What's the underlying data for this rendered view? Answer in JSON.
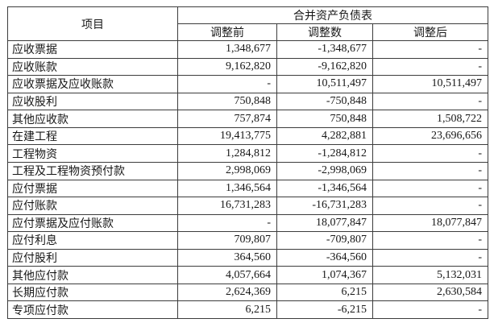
{
  "table": {
    "columns": {
      "item": "项目",
      "group": "合并资产负债表",
      "sub": [
        "调整前",
        "调整数",
        "调整后"
      ]
    },
    "rows": [
      {
        "label": "应收票据",
        "before": "1,348,677",
        "adjust": "-1,348,677",
        "after": "-"
      },
      {
        "label": "应收账款",
        "before": "9,162,820",
        "adjust": "-9,162,820",
        "after": "-"
      },
      {
        "label": "应收票据及应收账款",
        "before": "-",
        "adjust": "10,511,497",
        "after": "10,511,497"
      },
      {
        "label": "应收股利",
        "before": "750,848",
        "adjust": "-750,848",
        "after": "-"
      },
      {
        "label": "其他应收款",
        "before": "757,874",
        "adjust": "750,848",
        "after": "1,508,722"
      },
      {
        "label": "在建工程",
        "before": "19,413,775",
        "adjust": "4,282,881",
        "after": "23,696,656"
      },
      {
        "label": "工程物资",
        "before": "1,284,812",
        "adjust": "-1,284,812",
        "after": "-"
      },
      {
        "label": "工程及工程物资预付款",
        "before": "2,998,069",
        "adjust": "-2,998,069",
        "after": "-"
      },
      {
        "label": "应付票据",
        "before": "1,346,564",
        "adjust": "-1,346,564",
        "after": "-"
      },
      {
        "label": "应付账款",
        "before": "16,731,283",
        "adjust": "-16,731,283",
        "after": "-"
      },
      {
        "label": "应付票据及应付账款",
        "before": "-",
        "adjust": "18,077,847",
        "after": "18,077,847"
      },
      {
        "label": "应付利息",
        "before": "709,807",
        "adjust": "-709,807",
        "after": "-"
      },
      {
        "label": "应付股利",
        "before": "364,560",
        "adjust": "-364,560",
        "after": "-"
      },
      {
        "label": "其他应付款",
        "before": "4,057,664",
        "adjust": "1,074,367",
        "after": "5,132,031"
      },
      {
        "label": "长期应付款",
        "before": "2,624,369",
        "adjust": "6,215",
        "after": "2,630,584"
      },
      {
        "label": "专项应付款",
        "before": "6,215",
        "adjust": "-6,215",
        "after": "-"
      }
    ]
  },
  "colors": {
    "background": "#ffffff",
    "border": "#3c3c3c",
    "text": "#171717"
  }
}
